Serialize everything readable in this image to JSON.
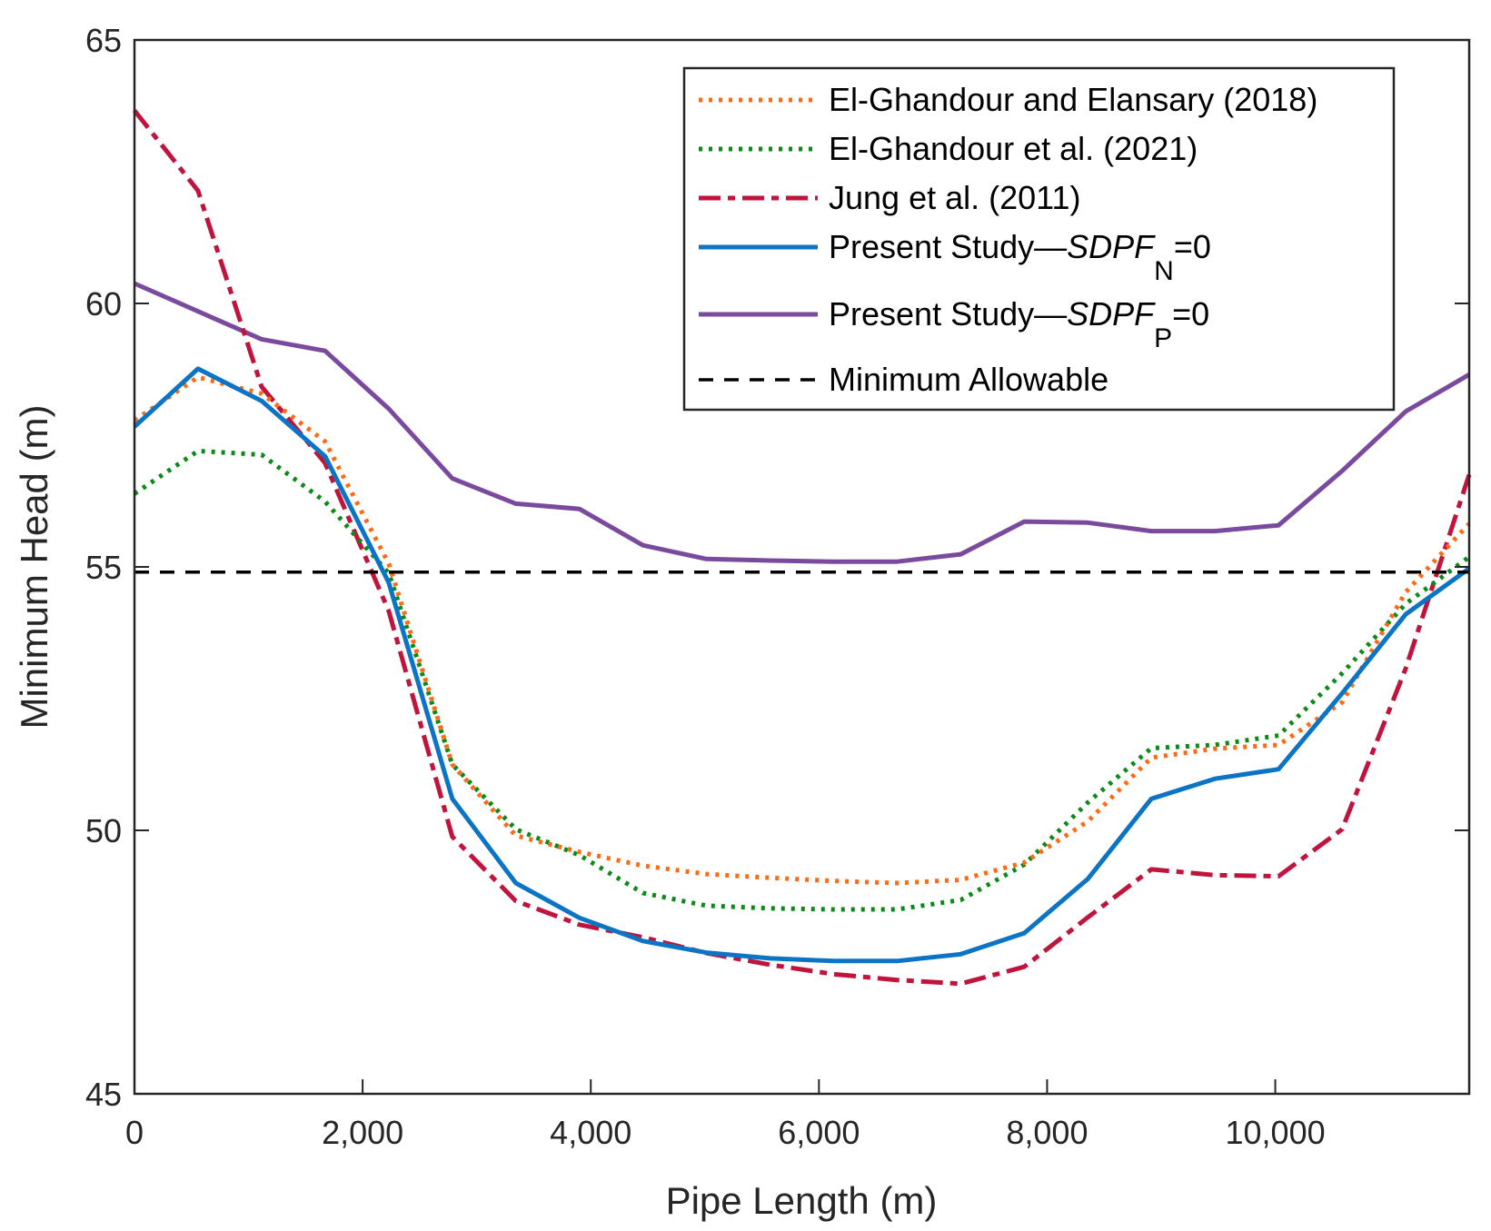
{
  "chart_data": {
    "type": "line",
    "title": "",
    "xlabel": "Pipe Length (m)",
    "ylabel": "Minimum Head (m)",
    "xlim": [
      0,
      11700
    ],
    "ylim": [
      45,
      65
    ],
    "xticks": [
      0,
      2000,
      4000,
      6000,
      8000,
      10000
    ],
    "xtick_labels": [
      "0",
      "2,000",
      "4,000",
      "6,000",
      "8,000",
      "10,000"
    ],
    "yticks": [
      45,
      50,
      55,
      60,
      65
    ],
    "ytick_labels": [
      "45",
      "50",
      "55",
      "60",
      "65"
    ],
    "grid": false,
    "legend_position": "top-right",
    "x": [
      0,
      557,
      1114,
      1671,
      2229,
      2786,
      3343,
      3900,
      4457,
      5014,
      5571,
      6129,
      6686,
      7243,
      7800,
      8357,
      8914,
      9471,
      10029,
      10586,
      11143,
      11700
    ],
    "series": [
      {
        "name": "El-Ghandour and Elansary (2018)",
        "color": "#ff6a13",
        "style": "dotted",
        "values": [
          57.78,
          58.6,
          58.29,
          57.38,
          55.06,
          51.25,
          49.9,
          49.59,
          49.33,
          49.17,
          49.1,
          49.04,
          49.0,
          49.06,
          49.39,
          50.17,
          51.38,
          51.55,
          51.62,
          52.43,
          54.52,
          55.82
        ]
      },
      {
        "name": "El-Ghandour et al. (2021)",
        "color": "#0b8a17",
        "style": "dotted",
        "values": [
          56.39,
          57.2,
          57.13,
          56.24,
          54.88,
          51.25,
          50.02,
          49.53,
          48.81,
          48.57,
          48.52,
          48.5,
          48.5,
          48.68,
          49.35,
          50.53,
          51.56,
          51.62,
          51.8,
          52.98,
          54.3,
          55.19
        ]
      },
      {
        "name": "Jung et al. (2011)",
        "color": "#c0143c",
        "style": "dashdot",
        "values": [
          63.66,
          62.14,
          58.42,
          56.97,
          54.16,
          49.88,
          48.66,
          48.21,
          47.97,
          47.67,
          47.45,
          47.27,
          47.16,
          47.09,
          47.41,
          48.35,
          49.26,
          49.15,
          49.13,
          50.02,
          53.07,
          56.75
        ]
      },
      {
        "name": "Present Study—SDPF_N=0",
        "color": "#0b74c4",
        "style": "solid",
        "values": [
          57.66,
          58.76,
          58.15,
          57.1,
          54.7,
          50.6,
          49.0,
          48.34,
          47.9,
          47.68,
          47.57,
          47.52,
          47.52,
          47.65,
          48.05,
          49.08,
          50.6,
          50.98,
          51.16,
          52.6,
          54.1,
          54.97
        ]
      },
      {
        "name": "Present Study—SDPF_P=0",
        "color": "#7a4a9e",
        "style": "solid",
        "values": [
          60.38,
          59.85,
          59.32,
          59.1,
          58.0,
          56.68,
          56.2,
          56.1,
          55.41,
          55.15,
          55.12,
          55.1,
          55.1,
          55.24,
          55.86,
          55.84,
          55.68,
          55.68,
          55.79,
          56.82,
          57.95,
          58.65
        ]
      },
      {
        "name": "Minimum Allowable",
        "color": "#000000",
        "style": "dashed",
        "constant": 54.9
      }
    ],
    "legend": [
      {
        "prefix": "El-Ghandour and Elansary (2018)",
        "italic": "",
        "sub": "",
        "suffix": ""
      },
      {
        "prefix": "El-Ghandour et al. (2021)",
        "italic": "",
        "sub": "",
        "suffix": ""
      },
      {
        "prefix": "Jung et al. (2011)",
        "italic": "",
        "sub": "",
        "suffix": ""
      },
      {
        "prefix": "Present Study—",
        "italic": "SDPF",
        "sub": "N",
        "suffix": "=0"
      },
      {
        "prefix": "Present Study—",
        "italic": "SDPF",
        "sub": "P",
        "suffix": "=0"
      },
      {
        "prefix": "Minimum Allowable",
        "italic": "",
        "sub": "",
        "suffix": ""
      }
    ]
  }
}
